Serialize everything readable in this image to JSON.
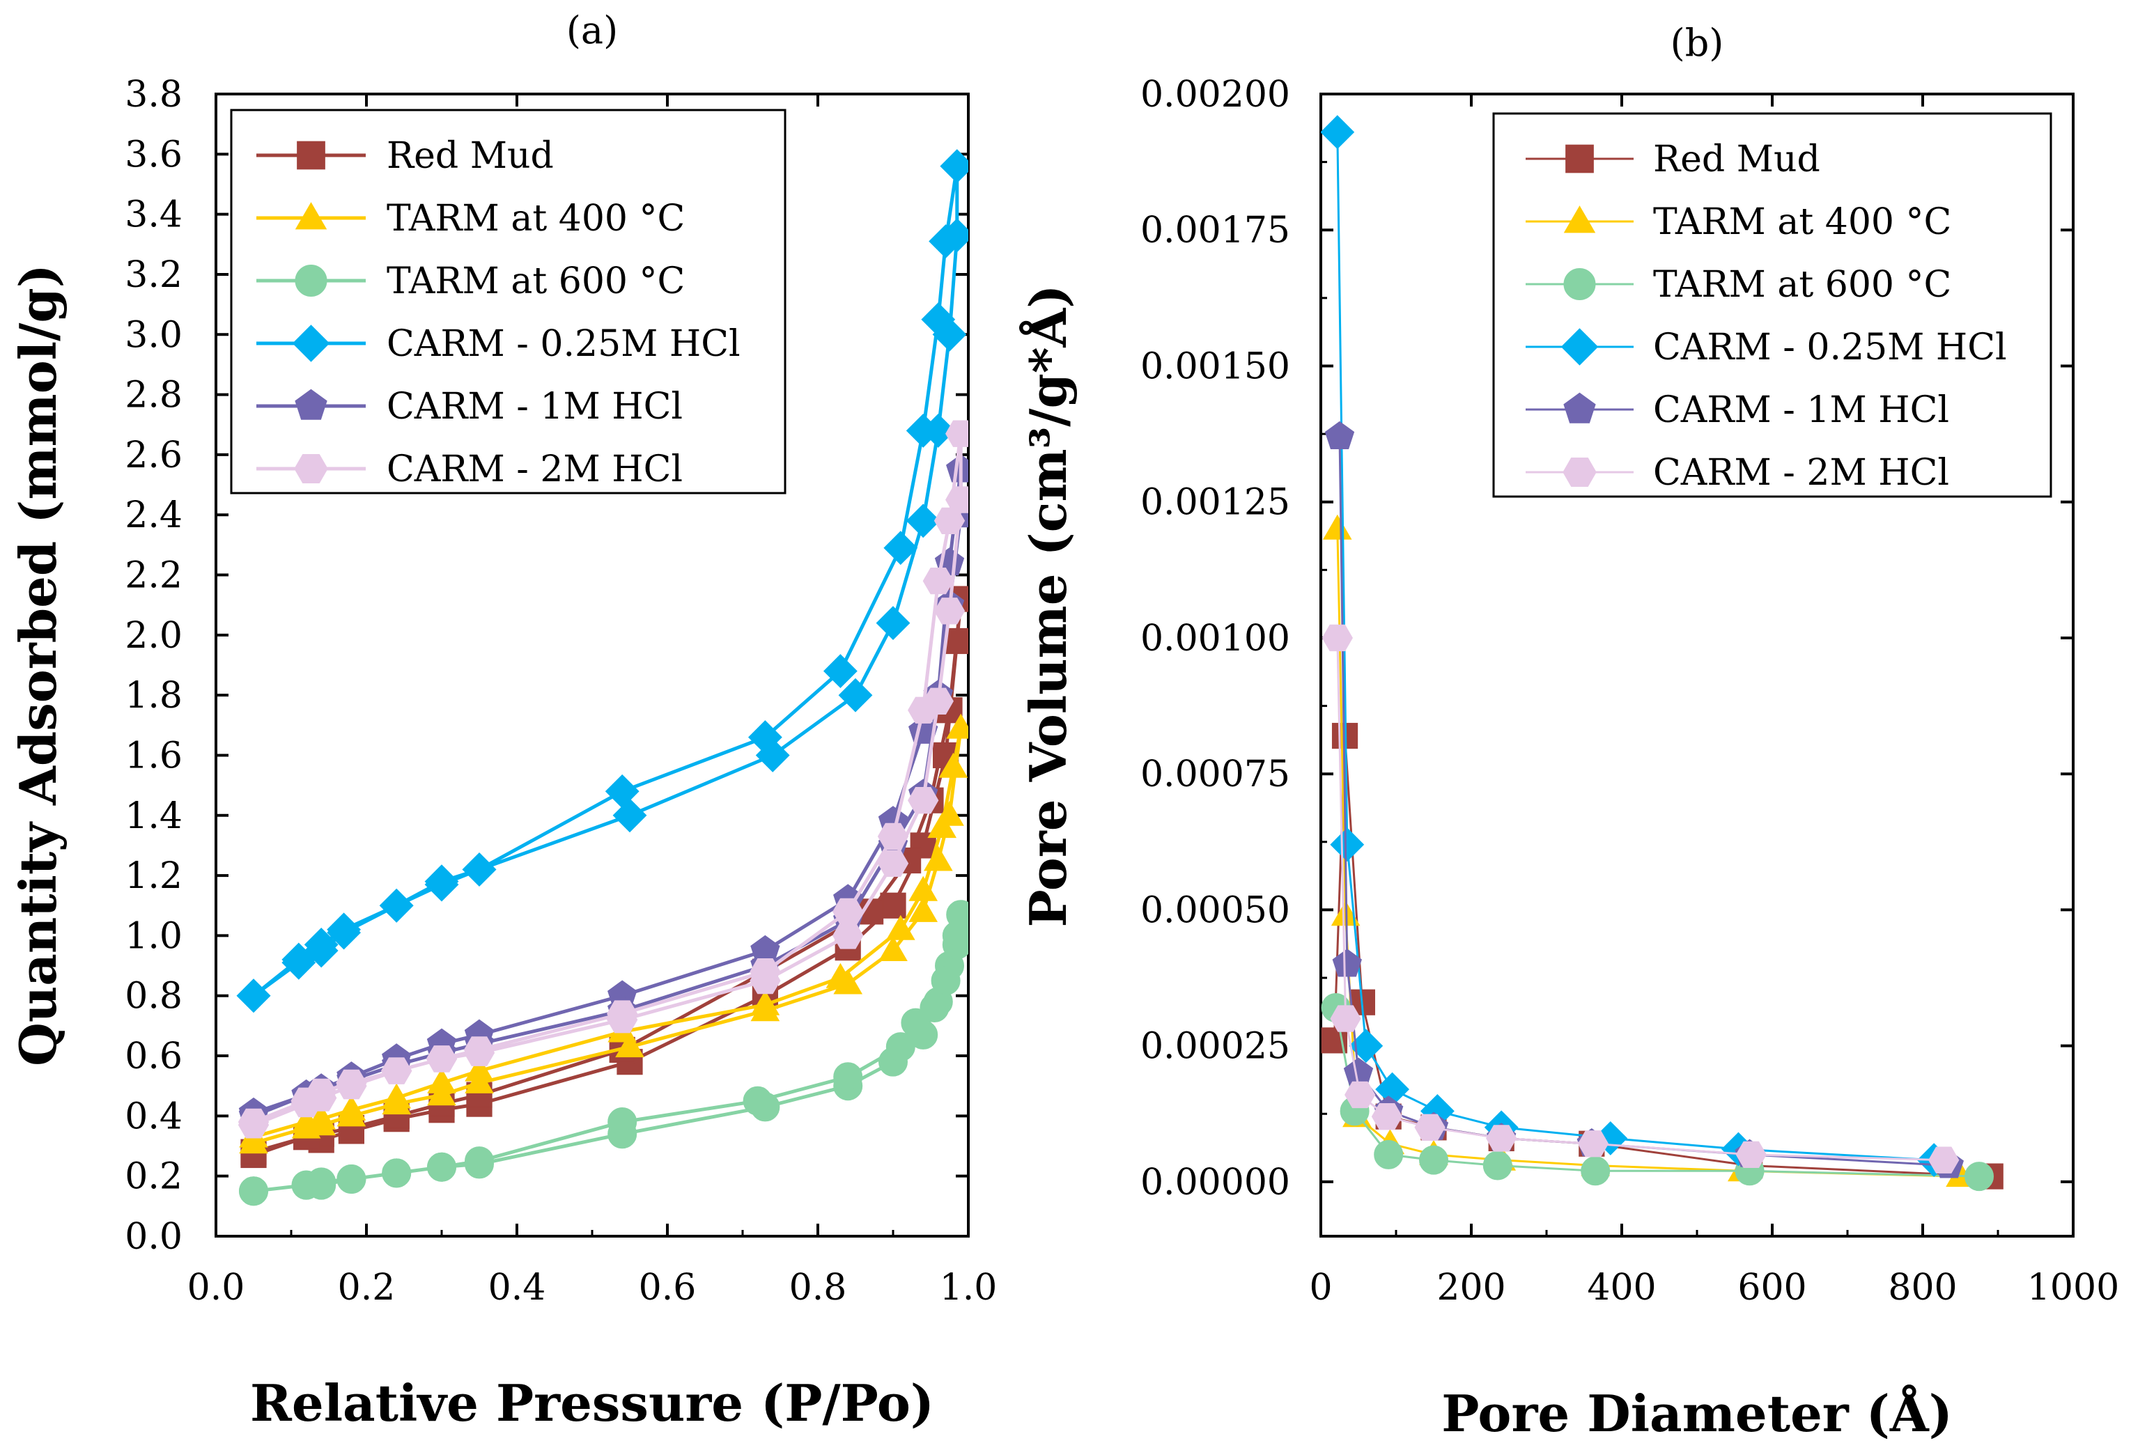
{
  "chart_data": [
    {
      "type": "line",
      "panel_label": "(a)",
      "title": "",
      "xlabel": "Relative  Pressure (P/Po)",
      "ylabel": "Quantity  Adsorbed (mmol/g)",
      "xlim": [
        0.0,
        1.0
      ],
      "ylim": [
        0.0,
        3.8
      ],
      "xticks": [
        0.0,
        0.2,
        0.4,
        0.6,
        0.8,
        1.0
      ],
      "xtick_labels": [
        "0.0",
        "0.2",
        "0.4",
        "0.6",
        "0.8",
        "1.0"
      ],
      "yticks": [
        0.0,
        0.2,
        0.4,
        0.6,
        0.8,
        1.0,
        1.2,
        1.4,
        1.6,
        1.8,
        2.0,
        2.2,
        2.4,
        2.6,
        2.8,
        3.0,
        3.2,
        3.4,
        3.6,
        3.8
      ],
      "ytick_labels": [
        "0.0",
        "0.2",
        "0.4",
        "0.6",
        "0.8",
        "1.0",
        "1.2",
        "1.4",
        "1.6",
        "1.8",
        "2.0",
        "2.2",
        "2.4",
        "2.6",
        "2.8",
        "3.0",
        "3.2",
        "3.4",
        "3.6",
        "3.8"
      ],
      "legend_position": "top-left",
      "series": [
        {
          "name": "Red Mud",
          "color": "#a0413b",
          "marker": "square",
          "x": [
            0.05,
            0.12,
            0.14,
            0.18,
            0.24,
            0.3,
            0.35,
            0.55,
            0.73,
            0.84,
            0.9,
            0.94,
            0.97,
            0.985,
            0.99,
            0.975,
            0.95,
            0.92,
            0.87,
            0.73,
            0.54,
            0.35,
            0.3,
            0.24,
            0.18,
            0.14,
            0.12,
            0.05
          ],
          "y": [
            0.27,
            0.33,
            0.32,
            0.35,
            0.39,
            0.42,
            0.44,
            0.58,
            0.8,
            0.96,
            1.1,
            1.3,
            1.6,
            1.98,
            2.12,
            1.75,
            1.45,
            1.25,
            1.08,
            0.88,
            0.62,
            0.47,
            0.44,
            0.4,
            0.36,
            0.34,
            0.33,
            0.28
          ]
        },
        {
          "name": "TARM at 400 °C",
          "color": "#ffcc00",
          "marker": "triangle",
          "x": [
            0.05,
            0.12,
            0.14,
            0.18,
            0.24,
            0.3,
            0.35,
            0.55,
            0.73,
            0.84,
            0.9,
            0.94,
            0.96,
            0.975,
            0.99,
            0.98,
            0.965,
            0.94,
            0.91,
            0.83,
            0.73,
            0.54,
            0.35,
            0.3,
            0.24,
            0.18,
            0.14,
            0.12,
            0.05
          ],
          "y": [
            0.31,
            0.36,
            0.37,
            0.4,
            0.44,
            0.47,
            0.51,
            0.63,
            0.75,
            0.84,
            0.95,
            1.08,
            1.25,
            1.4,
            1.69,
            1.56,
            1.36,
            1.15,
            1.02,
            0.86,
            0.77,
            0.68,
            0.55,
            0.51,
            0.46,
            0.42,
            0.39,
            0.38,
            0.33
          ]
        },
        {
          "name": "TARM at 600 °C",
          "color": "#86d3a4",
          "marker": "circle",
          "x": [
            0.05,
            0.12,
            0.14,
            0.18,
            0.24,
            0.3,
            0.35,
            0.54,
            0.73,
            0.84,
            0.9,
            0.94,
            0.96,
            0.975,
            0.985,
            0.99,
            0.985,
            0.97,
            0.955,
            0.93,
            0.91,
            0.84,
            0.72,
            0.54,
            0.35,
            0.3,
            0.24,
            0.18,
            0.14,
            0.12,
            0.05
          ],
          "y": [
            0.15,
            0.17,
            0.17,
            0.19,
            0.21,
            0.23,
            0.24,
            0.34,
            0.43,
            0.5,
            0.58,
            0.67,
            0.78,
            0.9,
            0.97,
            1.07,
            1.0,
            0.85,
            0.76,
            0.71,
            0.63,
            0.53,
            0.45,
            0.38,
            0.25,
            0.23,
            0.21,
            0.19,
            0.18,
            0.17,
            0.15
          ]
        },
        {
          "name": "CARM - 0.25M HCl",
          "color": "#00b0f0",
          "marker": "diamond",
          "x": [
            0.05,
            0.11,
            0.14,
            0.17,
            0.24,
            0.3,
            0.35,
            0.55,
            0.74,
            0.85,
            0.9,
            0.94,
            0.96,
            0.975,
            0.985,
            0.985,
            0.97,
            0.96,
            0.94,
            0.91,
            0.83,
            0.73,
            0.54,
            0.35,
            0.3,
            0.24,
            0.17,
            0.14,
            0.11,
            0.05
          ],
          "y": [
            0.8,
            0.91,
            0.95,
            1.01,
            1.1,
            1.17,
            1.22,
            1.4,
            1.6,
            1.8,
            2.04,
            2.38,
            2.68,
            3.0,
            3.33,
            3.56,
            3.31,
            3.05,
            2.68,
            2.29,
            1.88,
            1.66,
            1.48,
            1.22,
            1.18,
            1.1,
            1.02,
            0.97,
            0.92,
            0.8
          ]
        },
        {
          "name": "CARM - 1M HCl",
          "color": "#7066b0",
          "marker": "pentagon",
          "x": [
            0.05,
            0.12,
            0.14,
            0.18,
            0.24,
            0.3,
            0.35,
            0.54,
            0.73,
            0.84,
            0.9,
            0.94,
            0.96,
            0.975,
            0.99,
            0.99,
            0.975,
            0.96,
            0.94,
            0.9,
            0.84,
            0.73,
            0.54,
            0.35,
            0.3,
            0.24,
            0.18,
            0.14,
            0.12,
            0.05
          ],
          "y": [
            0.41,
            0.47,
            0.49,
            0.53,
            0.59,
            0.64,
            0.67,
            0.8,
            0.95,
            1.12,
            1.38,
            1.68,
            1.8,
            2.1,
            2.4,
            2.55,
            2.24,
            1.8,
            1.47,
            1.3,
            1.05,
            0.9,
            0.75,
            0.64,
            0.61,
            0.57,
            0.52,
            0.49,
            0.47,
            0.4
          ]
        },
        {
          "name": "CARM - 2M HCl",
          "color": "#e6c8e6",
          "marker": "hexagon",
          "x": [
            0.05,
            0.12,
            0.14,
            0.18,
            0.24,
            0.3,
            0.35,
            0.54,
            0.73,
            0.84,
            0.9,
            0.94,
            0.96,
            0.975,
            0.99,
            0.99,
            0.975,
            0.96,
            0.94,
            0.9,
            0.84,
            0.73,
            0.54,
            0.35,
            0.3,
            0.24,
            0.18,
            0.14,
            0.12,
            0.05
          ],
          "y": [
            0.37,
            0.44,
            0.46,
            0.5,
            0.55,
            0.59,
            0.62,
            0.74,
            0.88,
            1.08,
            1.33,
            1.75,
            2.18,
            2.38,
            2.67,
            2.45,
            2.08,
            1.78,
            1.45,
            1.24,
            1.0,
            0.85,
            0.72,
            0.61,
            0.59,
            0.55,
            0.51,
            0.48,
            0.45,
            0.38
          ]
        }
      ]
    },
    {
      "type": "line",
      "panel_label": "(b)",
      "title": "",
      "xlabel": "Pore Diameter (Å)",
      "ylabel": "Pore Volume (cm³/g*Å)",
      "xlim": [
        0,
        1000
      ],
      "ylim": [
        -0.0001,
        0.002
      ],
      "xticks": [
        0,
        200,
        400,
        600,
        800,
        1000
      ],
      "xtick_labels": [
        "0",
        "200",
        "400",
        "600",
        "800",
        "1000"
      ],
      "yticks": [
        0.0,
        0.00025,
        0.0005,
        0.00075,
        0.001,
        0.00125,
        0.0015,
        0.00175,
        0.002
      ],
      "ytick_labels": [
        "0.00000",
        "0.00025",
        "0.00050",
        "0.00075",
        "0.00100",
        "0.00125",
        "0.00150",
        "0.00175",
        "0.00200"
      ],
      "legend_position": "top-right",
      "series": [
        {
          "name": "Red Mud",
          "color": "#a0413b",
          "marker": "square",
          "x": [
            18,
            32,
            55,
            90,
            150,
            240,
            360,
            570,
            890
          ],
          "y": [
            0.00026,
            0.00082,
            0.00033,
            0.00012,
            0.0001,
            8e-05,
            7e-05,
            3e-05,
            1e-05
          ]
        },
        {
          "name": "TARM at 400 °C",
          "color": "#ffcc00",
          "marker": "triangle",
          "x": [
            22,
            33,
            48,
            92,
            150,
            240,
            365,
            560,
            850
          ],
          "y": [
            0.0012,
            0.00049,
            0.00012,
            7e-05,
            5e-05,
            4e-05,
            3e-05,
            2e-05,
            1e-05
          ]
        },
        {
          "name": "TARM at 600 °C",
          "color": "#86d3a4",
          "marker": "circle",
          "x": [
            20,
            45,
            90,
            150,
            235,
            365,
            570,
            875
          ],
          "y": [
            0.00032,
            0.00013,
            5e-05,
            4e-05,
            3e-05,
            2e-05,
            2e-05,
            1e-05
          ]
        },
        {
          "name": "CARM - 0.25M HCl",
          "color": "#00b0f0",
          "marker": "diamond",
          "x": [
            22,
            35,
            60,
            95,
            155,
            240,
            385,
            555,
            815
          ],
          "y": [
            0.00193,
            0.00062,
            0.00025,
            0.00017,
            0.00013,
            0.0001,
            8e-05,
            6e-05,
            4e-05
          ]
        },
        {
          "name": "CARM - 1M HCl",
          "color": "#7066b0",
          "marker": "pentagon",
          "x": [
            25,
            35,
            50,
            90,
            150,
            240,
            360,
            570,
            835
          ],
          "y": [
            0.00137,
            0.0004,
            0.0002,
            0.00013,
            0.0001,
            8e-05,
            7e-05,
            5e-05,
            3e-05
          ]
        },
        {
          "name": "CARM - 2M HCl",
          "color": "#e6c8e6",
          "marker": "hexagon",
          "x": [
            22,
            33,
            52,
            88,
            145,
            240,
            362,
            572,
            828
          ],
          "y": [
            0.001,
            0.0003,
            0.00016,
            0.00012,
            0.0001,
            8e-05,
            7e-05,
            5e-05,
            4e-05
          ]
        }
      ]
    }
  ]
}
